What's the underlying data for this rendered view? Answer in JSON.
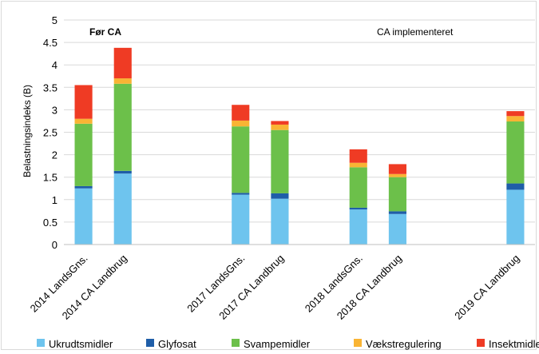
{
  "chart_data": {
    "type": "bar",
    "stacked": true,
    "categories": [
      "2014 LandsGns.",
      "2014 CA Landbrug",
      "",
      "",
      "2017 LandsGns.",
      "2017 CA Landbrug",
      "",
      "2018 LandsGns.",
      "2018 CA Landbrug",
      "",
      "",
      "2019 CA Landbrug"
    ],
    "series": [
      {
        "name": "Ukrudtsmidler",
        "color": "#6ec4ee",
        "values": [
          1.25,
          1.58,
          null,
          null,
          1.11,
          1.02,
          null,
          0.78,
          0.68,
          null,
          null,
          1.22
        ]
      },
      {
        "name": "Glyfosat",
        "color": "#1f5ea8",
        "values": [
          0.05,
          0.06,
          null,
          null,
          0.04,
          0.12,
          null,
          0.04,
          0.06,
          null,
          null,
          0.14
        ]
      },
      {
        "name": "Svampemidler",
        "color": "#6cc04a",
        "values": [
          1.39,
          1.94,
          null,
          null,
          1.48,
          1.41,
          null,
          0.9,
          0.76,
          null,
          null,
          1.38
        ]
      },
      {
        "name": "Vækstregulering",
        "color": "#f9b434",
        "values": [
          0.11,
          0.12,
          null,
          null,
          0.13,
          0.12,
          null,
          0.1,
          0.07,
          null,
          null,
          0.12
        ]
      },
      {
        "name": "Insektmidler",
        "color": "#ef3b24",
        "values": [
          0.75,
          0.68,
          null,
          null,
          0.35,
          0.08,
          null,
          0.3,
          0.22,
          null,
          null,
          0.11
        ]
      }
    ],
    "ylabel": "Belastningsindeks (B)",
    "xlabel": "",
    "ylim": [
      0,
      5
    ],
    "yticks": [
      "0",
      "0.5",
      "1",
      "1.5",
      "2",
      "2.5",
      "3",
      "3.5",
      "4",
      "4.5",
      "5"
    ],
    "annotations": [
      "Før CA",
      "CA implementeret"
    ],
    "grid": "horizontal",
    "legend_position": "bottom"
  }
}
